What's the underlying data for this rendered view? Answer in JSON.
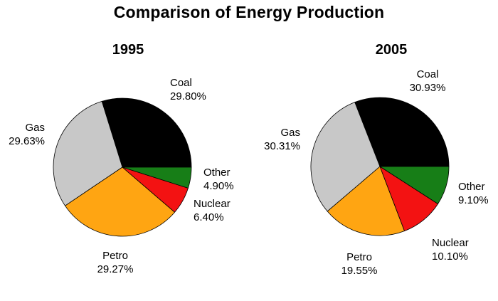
{
  "title": "Comparison of Energy Production",
  "chart_data": [
    {
      "type": "pie",
      "title": "1995",
      "unit": "%",
      "start_angle_deg": 0,
      "direction": "counterclockwise",
      "slices": [
        {
          "label": "Coal",
          "value": 29.8,
          "pct_label": "29.80%",
          "color": "#000000"
        },
        {
          "label": "Gas",
          "value": 29.63,
          "pct_label": "29.63%",
          "color": "#C8C8C8"
        },
        {
          "label": "Petro",
          "value": 29.27,
          "pct_label": "29.27%",
          "color": "#FFA512"
        },
        {
          "label": "Nuclear",
          "value": 6.4,
          "pct_label": "6.40%",
          "color": "#F31212"
        },
        {
          "label": "Other",
          "value": 4.9,
          "pct_label": "4.90%",
          "color": "#177E17"
        }
      ]
    },
    {
      "type": "pie",
      "title": "2005",
      "unit": "%",
      "start_angle_deg": 0,
      "direction": "counterclockwise",
      "slices": [
        {
          "label": "Coal",
          "value": 30.93,
          "pct_label": "30.93%",
          "color": "#000000"
        },
        {
          "label": "Gas",
          "value": 30.31,
          "pct_label": "30.31%",
          "color": "#C8C8C8"
        },
        {
          "label": "Petro",
          "value": 19.55,
          "pct_label": "19.55%",
          "color": "#FFA512"
        },
        {
          "label": "Nuclear",
          "value": 10.1,
          "pct_label": "10.10%",
          "color": "#F31212"
        },
        {
          "label": "Other",
          "value": 9.1,
          "pct_label": "9.10%",
          "color": "#177E17"
        }
      ]
    }
  ]
}
